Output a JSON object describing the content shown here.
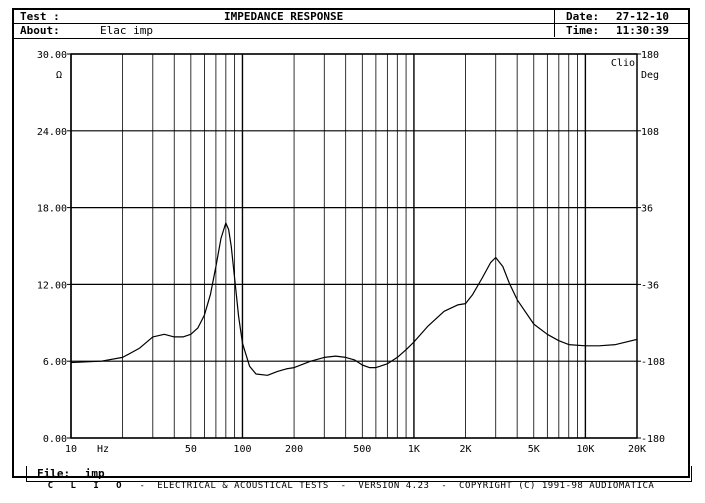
{
  "header": {
    "test_label": "Test :",
    "test_value": "",
    "about_label": "About:",
    "about_value": "Elac imp",
    "title": "IMPEDANCE RESPONSE",
    "date_label": "Date:",
    "date_value": "27-12-10",
    "time_label": "Time:",
    "time_value": "11:30:39"
  },
  "file": {
    "label": "File:",
    "value": "imp"
  },
  "footer": {
    "brand": "C L I O",
    "text": "-  ELECTRICAL & ACOUSTICAL TESTS  -  VERSION 4.23  -  COPYRIGHT (C) 1991-98 AUDIOMATICA"
  },
  "chart_data": {
    "type": "line",
    "title": "IMPEDANCE RESPONSE",
    "x_scale": "log",
    "xlim": [
      10,
      20000
    ],
    "x_unit_label": "Hz",
    "x_ticks": [
      {
        "value": 10,
        "label": "10"
      },
      {
        "value": 50,
        "label": "50"
      },
      {
        "value": 100,
        "label": "100"
      },
      {
        "value": 200,
        "label": "200"
      },
      {
        "value": 500,
        "label": "500"
      },
      {
        "value": 1000,
        "label": "1K"
      },
      {
        "value": 2000,
        "label": "2K"
      },
      {
        "value": 5000,
        "label": "5K"
      },
      {
        "value": 10000,
        "label": "10K"
      },
      {
        "value": 20000,
        "label": "20K"
      }
    ],
    "ylim": [
      0,
      30
    ],
    "y_unit_label": "Ω",
    "y_ticks": [
      "0.00",
      "6.00",
      "12.00",
      "18.00",
      "24.00",
      "30.00"
    ],
    "y2lim": [
      -180,
      180
    ],
    "y2_unit_label": "Deg",
    "y2_ticks": [
      "-180",
      "-108",
      "-36",
      "36",
      "108",
      "180"
    ],
    "corner_label": "Clio",
    "grid": true,
    "series": [
      {
        "color": "#000000",
        "x": [
          10,
          15,
          20,
          25,
          30,
          35,
          40,
          45,
          50,
          55,
          60,
          65,
          70,
          75,
          80,
          83,
          86,
          90,
          95,
          100,
          110,
          120,
          140,
          160,
          180,
          200,
          250,
          300,
          350,
          400,
          450,
          500,
          550,
          600,
          700,
          800,
          900,
          1000,
          1200,
          1500,
          1800,
          2000,
          2200,
          2500,
          2800,
          3000,
          3300,
          3600,
          4000,
          5000,
          6000,
          7000,
          8000,
          10000,
          12000,
          15000,
          20000
        ],
        "y": [
          5.9,
          6.0,
          6.3,
          7.0,
          7.9,
          8.1,
          7.9,
          7.9,
          8.1,
          8.6,
          9.6,
          11.2,
          13.4,
          15.6,
          16.8,
          16.3,
          15.0,
          12.5,
          9.5,
          7.4,
          5.6,
          5.0,
          4.9,
          5.2,
          5.4,
          5.5,
          6.0,
          6.3,
          6.4,
          6.3,
          6.1,
          5.7,
          5.5,
          5.5,
          5.8,
          6.3,
          6.9,
          7.5,
          8.7,
          9.9,
          10.4,
          10.5,
          11.2,
          12.5,
          13.7,
          14.1,
          13.4,
          12.1,
          10.8,
          8.9,
          8.1,
          7.6,
          7.3,
          7.2,
          7.2,
          7.3,
          7.7
        ]
      }
    ]
  }
}
